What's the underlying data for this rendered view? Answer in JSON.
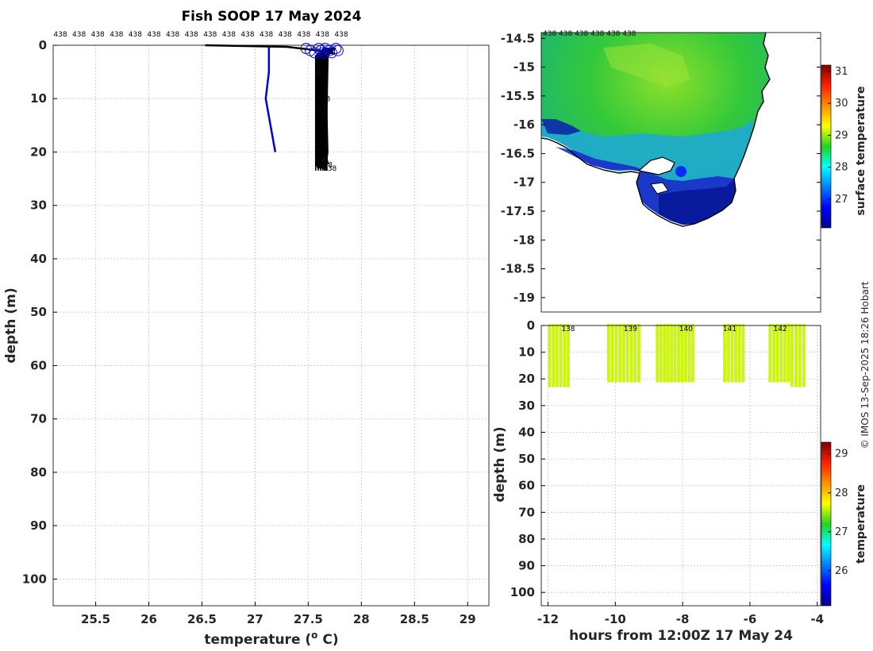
{
  "chart_data": [
    {
      "type": "line",
      "title": "Fish SOOP 17 May 2024",
      "xlabel": "temperature (",
      "xlabel_sup": "o",
      "xlabel_unit": " C)",
      "ylabel": "depth (m)",
      "xlim": [
        25.1,
        29.2
      ],
      "ylim": [
        105,
        0
      ],
      "xticks": [
        25.5,
        26,
        26.5,
        27,
        27.5,
        28,
        28.5,
        29
      ],
      "yticks": [
        0,
        10,
        20,
        30,
        40,
        50,
        60,
        70,
        80,
        90,
        100
      ],
      "profile_id_label": "438",
      "profile_id_count": 16,
      "series": [
        {
          "name": "climatology",
          "color": "#0000dd",
          "points": [
            [
              27.13,
              0
            ],
            [
              27.13,
              5
            ],
            [
              27.1,
              10
            ],
            [
              27.19,
              20
            ]
          ]
        },
        {
          "name": "surface_path",
          "color": "#000000",
          "points": [
            [
              26.53,
              0
            ],
            [
              27.3,
              0.3
            ],
            [
              27.6,
              1
            ],
            [
              27.75,
              1.6
            ]
          ]
        },
        {
          "name": "profiles",
          "color": "#000000",
          "x_range": [
            27.57,
            27.68
          ],
          "depth_max": 23.5,
          "count": 26
        }
      ],
      "surface_markers_color": "#0000ff",
      "surface_markers": [
        27.48,
        27.52,
        27.56,
        27.6,
        27.62,
        27.64,
        27.66,
        27.7,
        27.72,
        27.76,
        27.78
      ]
    },
    {
      "type": "heatmap",
      "name": "surface temperature map",
      "yticks": [
        -14.5,
        -15,
        -15.5,
        -16,
        -16.5,
        -17,
        -17.5,
        -18,
        -18.5,
        -19
      ],
      "ylim": [
        -19.25,
        -14.4
      ],
      "top_labels": "438 438 438 438 438 438",
      "colorbar": {
        "label": "surface temperature",
        "ticks": [
          27,
          28,
          29,
          30,
          31
        ],
        "range": [
          26.1,
          31.2
        ]
      },
      "marker_color": "#0a2aff"
    },
    {
      "type": "scatter",
      "name": "depth time section",
      "xlabel": "hours from 12:00Z 17 May 24",
      "ylabel": "depth (m)",
      "xlim": [
        -12.2,
        -3.9
      ],
      "ylim": [
        105,
        0
      ],
      "xticks": [
        -12,
        -10,
        -8,
        -6,
        -4
      ],
      "yticks": [
        0,
        10,
        20,
        30,
        40,
        50,
        60,
        70,
        80,
        90,
        100
      ],
      "top_labels": [
        "138",
        "139",
        "140",
        "141",
        "142"
      ],
      "top_label_hours": [
        -11.4,
        -9.55,
        -7.9,
        -6.6,
        -5.1
      ],
      "point_color": "#ccf513",
      "groups": [
        {
          "start": -11.95,
          "end": -11.4,
          "depth": 23
        },
        {
          "start": -10.2,
          "end": -9.3,
          "depth": 21.5
        },
        {
          "start": -8.75,
          "end": -7.7,
          "depth": 21
        },
        {
          "start": -6.75,
          "end": -6.2,
          "depth": 21
        },
        {
          "start": -5.4,
          "end": -4.85,
          "depth": 21.5
        },
        {
          "start": -4.75,
          "end": -4.4,
          "depth": 22.5
        }
      ],
      "colorbar": {
        "label": "temperature",
        "ticks": [
          26,
          27,
          28,
          29
        ],
        "range": [
          25.1,
          29.3
        ]
      }
    }
  ],
  "credit": "© IMOS 13-Sep-2025 18:26 Hobart"
}
